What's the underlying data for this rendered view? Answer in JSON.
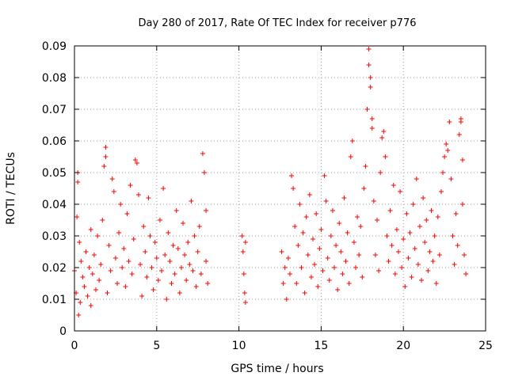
{
  "chart_data": {
    "type": "scatter",
    "title": "Day 280 of 2017, Rate Of TEC Index for receiver p776",
    "xlabel": "GPS time / hours",
    "ylabel": "ROTI / TECUs",
    "xlim": [
      0,
      25
    ],
    "ylim": [
      0,
      0.09
    ],
    "x_ticks": [
      0,
      5,
      10,
      15,
      20,
      25
    ],
    "x_tick_labels": [
      "0",
      "5",
      "10",
      "15",
      "20",
      "25"
    ],
    "y_ticks": [
      0,
      0.01,
      0.02,
      0.03,
      0.04,
      0.05,
      0.06,
      0.07,
      0.08,
      0.09
    ],
    "y_tick_labels": [
      "0",
      "0.01",
      "0.02",
      "0.03",
      "0.04",
      "0.05",
      "0.06",
      "0.07",
      "0.08",
      "0.09"
    ],
    "grid": true,
    "marker": "+",
    "color": "#ff0000",
    "series": [
      {
        "points": [
          [
            0.0,
            0.019
          ],
          [
            0.1,
            0.012
          ],
          [
            0.15,
            0.036
          ],
          [
            0.2,
            0.047
          ],
          [
            0.2,
            0.05
          ],
          [
            0.25,
            0.005
          ],
          [
            0.3,
            0.028
          ],
          [
            0.35,
            0.009
          ],
          [
            0.4,
            0.022
          ],
          [
            0.5,
            0.017
          ],
          [
            0.6,
            0.014
          ],
          [
            0.7,
            0.025
          ],
          [
            0.8,
            0.011
          ],
          [
            0.9,
            0.02
          ],
          [
            1.0,
            0.032
          ],
          [
            1.0,
            0.008
          ],
          [
            1.1,
            0.018
          ],
          [
            1.2,
            0.024
          ],
          [
            1.3,
            0.013
          ],
          [
            1.4,
            0.03
          ],
          [
            1.5,
            0.016
          ],
          [
            1.6,
            0.021
          ],
          [
            1.7,
            0.035
          ],
          [
            1.8,
            0.052
          ],
          [
            1.9,
            0.058
          ],
          [
            1.9,
            0.055
          ],
          [
            2.0,
            0.012
          ],
          [
            2.1,
            0.027
          ],
          [
            2.2,
            0.019
          ],
          [
            2.3,
            0.048
          ],
          [
            2.4,
            0.044
          ],
          [
            2.5,
            0.023
          ],
          [
            2.6,
            0.015
          ],
          [
            2.7,
            0.031
          ],
          [
            2.8,
            0.04
          ],
          [
            2.9,
            0.02
          ],
          [
            3.0,
            0.026
          ],
          [
            3.1,
            0.014
          ],
          [
            3.2,
            0.037
          ],
          [
            3.3,
            0.022
          ],
          [
            3.4,
            0.046
          ],
          [
            3.5,
            0.018
          ],
          [
            3.6,
            0.029
          ],
          [
            3.7,
            0.054
          ],
          [
            3.8,
            0.053
          ],
          [
            3.9,
            0.043
          ],
          [
            4.0,
            0.021
          ],
          [
            4.1,
            0.011
          ],
          [
            4.2,
            0.033
          ],
          [
            4.3,
            0.025
          ],
          [
            4.4,
            0.017
          ],
          [
            4.5,
            0.042
          ],
          [
            4.6,
            0.03
          ],
          [
            4.7,
            0.02
          ],
          [
            4.8,
            0.013
          ],
          [
            4.9,
            0.028
          ],
          [
            5.0,
            0.023
          ],
          [
            5.1,
            0.016
          ],
          [
            5.2,
            0.035
          ],
          [
            5.3,
            0.019
          ],
          [
            5.4,
            0.045
          ],
          [
            5.5,
            0.024
          ],
          [
            5.6,
            0.01
          ],
          [
            5.7,
            0.031
          ],
          [
            5.8,
            0.022
          ],
          [
            5.9,
            0.015
          ],
          [
            6.0,
            0.027
          ],
          [
            6.1,
            0.018
          ],
          [
            6.2,
            0.038
          ],
          [
            6.3,
            0.026
          ],
          [
            6.4,
            0.012
          ],
          [
            6.5,
            0.02
          ],
          [
            6.6,
            0.034
          ],
          [
            6.7,
            0.024
          ],
          [
            6.8,
            0.016
          ],
          [
            6.9,
            0.028
          ],
          [
            7.0,
            0.021
          ],
          [
            7.1,
            0.041
          ],
          [
            7.2,
            0.019
          ],
          [
            7.3,
            0.03
          ],
          [
            7.4,
            0.014
          ],
          [
            7.5,
            0.025
          ],
          [
            7.6,
            0.033
          ],
          [
            7.7,
            0.018
          ],
          [
            7.8,
            0.056
          ],
          [
            7.9,
            0.05
          ],
          [
            8.0,
            0.038
          ],
          [
            8.0,
            0.022
          ],
          [
            8.1,
            0.015
          ],
          [
            10.2,
            0.03
          ],
          [
            10.25,
            0.025
          ],
          [
            10.3,
            0.018
          ],
          [
            10.35,
            0.012
          ],
          [
            10.4,
            0.028
          ],
          [
            10.4,
            0.009
          ],
          [
            12.6,
            0.025
          ],
          [
            12.7,
            0.015
          ],
          [
            12.8,
            0.02
          ],
          [
            12.9,
            0.01
          ],
          [
            13.0,
            0.023
          ],
          [
            13.1,
            0.018
          ],
          [
            13.2,
            0.049
          ],
          [
            13.3,
            0.045
          ],
          [
            13.4,
            0.033
          ],
          [
            13.5,
            0.015
          ],
          [
            13.6,
            0.027
          ],
          [
            13.7,
            0.04
          ],
          [
            13.8,
            0.02
          ],
          [
            13.9,
            0.031
          ],
          [
            14.0,
            0.012
          ],
          [
            14.1,
            0.036
          ],
          [
            14.2,
            0.024
          ],
          [
            14.3,
            0.043
          ],
          [
            14.4,
            0.017
          ],
          [
            14.5,
            0.029
          ],
          [
            14.6,
            0.021
          ],
          [
            14.7,
            0.037
          ],
          [
            14.8,
            0.014
          ],
          [
            14.9,
            0.026
          ],
          [
            15.0,
            0.032
          ],
          [
            15.1,
            0.019
          ],
          [
            15.2,
            0.049
          ],
          [
            15.3,
            0.041
          ],
          [
            15.4,
            0.023
          ],
          [
            15.5,
            0.016
          ],
          [
            15.6,
            0.03
          ],
          [
            15.7,
            0.038
          ],
          [
            15.8,
            0.02
          ],
          [
            15.9,
            0.027
          ],
          [
            16.0,
            0.013
          ],
          [
            16.1,
            0.034
          ],
          [
            16.2,
            0.025
          ],
          [
            16.3,
            0.018
          ],
          [
            16.4,
            0.042
          ],
          [
            16.5,
            0.022
          ],
          [
            16.6,
            0.031
          ],
          [
            16.7,
            0.015
          ],
          [
            16.8,
            0.055
          ],
          [
            16.9,
            0.06
          ],
          [
            17.0,
            0.028
          ],
          [
            17.1,
            0.02
          ],
          [
            17.2,
            0.036
          ],
          [
            17.3,
            0.024
          ],
          [
            17.4,
            0.033
          ],
          [
            17.5,
            0.017
          ],
          [
            17.6,
            0.045
          ],
          [
            17.7,
            0.052
          ],
          [
            17.8,
            0.07
          ],
          [
            17.9,
            0.089
          ],
          [
            17.9,
            0.084
          ],
          [
            18.0,
            0.08
          ],
          [
            18.0,
            0.077
          ],
          [
            18.1,
            0.067
          ],
          [
            18.1,
            0.064
          ],
          [
            18.2,
            0.041
          ],
          [
            18.3,
            0.024
          ],
          [
            18.4,
            0.035
          ],
          [
            18.5,
            0.019
          ],
          [
            18.6,
            0.05
          ],
          [
            18.7,
            0.061
          ],
          [
            18.8,
            0.063
          ],
          [
            18.9,
            0.055
          ],
          [
            19.0,
            0.03
          ],
          [
            19.1,
            0.022
          ],
          [
            19.2,
            0.038
          ],
          [
            19.3,
            0.027
          ],
          [
            19.4,
            0.046
          ],
          [
            19.5,
            0.018
          ],
          [
            19.6,
            0.032
          ],
          [
            19.7,
            0.025
          ],
          [
            19.8,
            0.044
          ],
          [
            19.9,
            0.02
          ],
          [
            20.0,
            0.029
          ],
          [
            20.1,
            0.014
          ],
          [
            20.2,
            0.037
          ],
          [
            20.3,
            0.023
          ],
          [
            20.4,
            0.031
          ],
          [
            20.5,
            0.017
          ],
          [
            20.6,
            0.04
          ],
          [
            20.7,
            0.026
          ],
          [
            20.8,
            0.048
          ],
          [
            20.9,
            0.021
          ],
          [
            21.0,
            0.033
          ],
          [
            21.1,
            0.016
          ],
          [
            21.2,
            0.042
          ],
          [
            21.3,
            0.028
          ],
          [
            21.4,
            0.035
          ],
          [
            21.5,
            0.019
          ],
          [
            21.6,
            0.025
          ],
          [
            21.7,
            0.038
          ],
          [
            21.8,
            0.022
          ],
          [
            21.9,
            0.03
          ],
          [
            22.0,
            0.015
          ],
          [
            22.1,
            0.036
          ],
          [
            22.2,
            0.024
          ],
          [
            22.3,
            0.044
          ],
          [
            22.4,
            0.05
          ],
          [
            22.5,
            0.055
          ],
          [
            22.6,
            0.059
          ],
          [
            22.7,
            0.057
          ],
          [
            22.8,
            0.066
          ],
          [
            22.9,
            0.048
          ],
          [
            23.0,
            0.03
          ],
          [
            23.1,
            0.021
          ],
          [
            23.2,
            0.037
          ],
          [
            23.3,
            0.027
          ],
          [
            23.4,
            0.062
          ],
          [
            23.5,
            0.067
          ],
          [
            23.5,
            0.066
          ],
          [
            23.6,
            0.054
          ],
          [
            23.6,
            0.04
          ],
          [
            23.7,
            0.024
          ],
          [
            23.8,
            0.018
          ]
        ]
      }
    ]
  }
}
